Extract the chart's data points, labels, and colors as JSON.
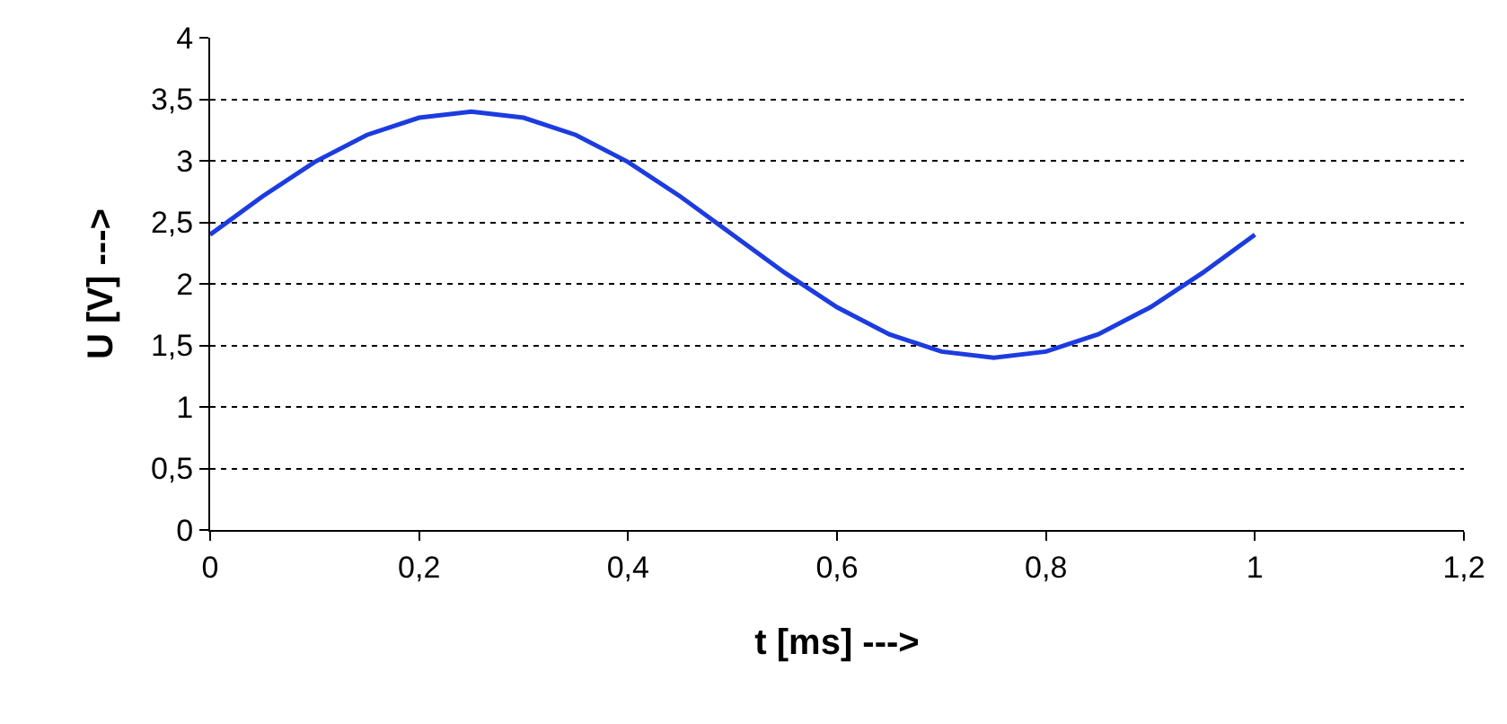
{
  "chart_data": {
    "type": "line",
    "xlabel": "t [ms] --->",
    "ylabel": "U [V] --->",
    "x": [
      0,
      0.05,
      0.1,
      0.15,
      0.2,
      0.25,
      0.3,
      0.35,
      0.4,
      0.45,
      0.5,
      0.55,
      0.6,
      0.65,
      0.7,
      0.75,
      0.8,
      0.85,
      0.9,
      0.95,
      1
    ],
    "series": [
      {
        "color": "#1c3ce0",
        "values": [
          2.4,
          2.71,
          2.99,
          3.21,
          3.35,
          3.4,
          3.35,
          3.21,
          2.99,
          2.71,
          2.4,
          2.09,
          1.81,
          1.59,
          1.45,
          1.4,
          1.45,
          1.59,
          1.81,
          2.09,
          2.4
        ]
      }
    ],
    "xlim": [
      0,
      1.2
    ],
    "xticks": [
      0,
      {
        "value": 0.2,
        "label": "0,2"
      },
      {
        "value": 0.4,
        "label": "0,4"
      },
      {
        "value": 0.6,
        "label": "0,6"
      },
      {
        "value": 0.8,
        "label": "0,8"
      },
      1,
      {
        "value": 1.2,
        "label": "1,2"
      }
    ],
    "ylim": [
      0,
      4
    ],
    "yticks": [
      0,
      {
        "value": 0.5,
        "label": "0,5"
      },
      1,
      {
        "value": 1.5,
        "label": "1,5"
      },
      2,
      {
        "value": 2.5,
        "label": "2,5"
      },
      3,
      {
        "value": 3.5,
        "label": "3,5"
      },
      4
    ],
    "grid": "y",
    "legend": false,
    "marker": "none",
    "line_style": "solid"
  }
}
